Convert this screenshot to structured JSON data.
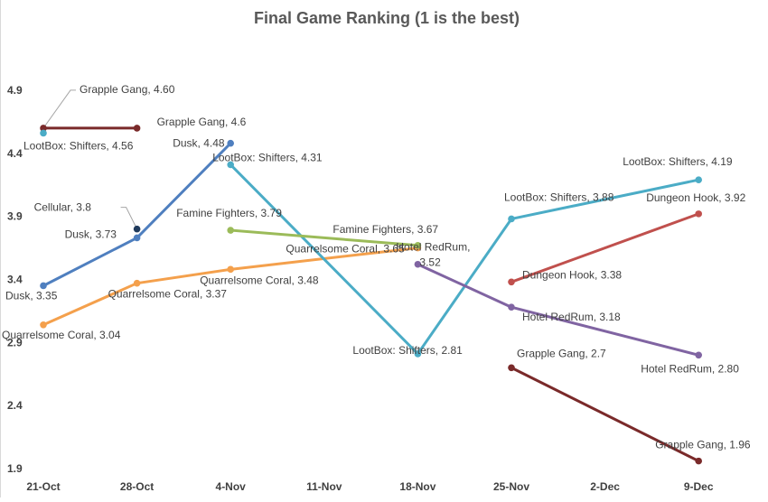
{
  "chart_data": {
    "type": "line",
    "title": "Final Game Ranking (1 is the best)",
    "xlabel": "",
    "ylabel": "",
    "x_dates": [
      "2017-10-21",
      "2017-10-28",
      "2017-11-04",
      "2017-11-11",
      "2017-11-18",
      "2017-11-25",
      "2017-12-02",
      "2017-12-09"
    ],
    "x_tick_labels": [
      "21-Oct",
      "28-Oct",
      "4-Nov",
      "11-Nov",
      "18-Nov",
      "25-Nov",
      "2-Dec",
      "9-Dec"
    ],
    "y_tick_labels": [
      "1.9",
      "2.4",
      "2.9",
      "3.4",
      "3.9",
      "4.4",
      "4.9"
    ],
    "ylim": [
      1.9,
      5.25
    ],
    "grid": false,
    "legend": "none",
    "series": [
      {
        "color": "#4f7fbf",
        "points": [
          {
            "x": "2017-10-21",
            "y": 3.35,
            "label": "Dusk, 3.35"
          },
          {
            "x": "2017-10-28",
            "y": 3.73,
            "label": "Dusk, 3.73"
          },
          {
            "x": "2017-11-04",
            "y": 4.48,
            "label": "Dusk, 4.48"
          }
        ]
      },
      {
        "color": "#f4a04c",
        "points": [
          {
            "x": "2017-10-21",
            "y": 3.04,
            "label": "Quarrelsome Coral, 3.04"
          },
          {
            "x": "2017-10-28",
            "y": 3.37,
            "label": "Quarrelsome Coral, 3.37"
          },
          {
            "x": "2017-11-04",
            "y": 3.48,
            "label": "Quarrelsome Coral, 3.48"
          },
          {
            "x": "2017-11-18",
            "y": 3.65,
            "label": "Quarrelsome Coral, 3.65"
          }
        ]
      },
      {
        "color": "#7a2a2a",
        "points": [
          {
            "x": "2017-10-21",
            "y": 4.6,
            "label": "Grapple Gang, 4.60"
          },
          {
            "x": "2017-10-28",
            "y": 4.6,
            "label": "Grapple Gang, 4.6"
          }
        ]
      },
      {
        "color": "#7a2a2a",
        "points": [
          {
            "x": "2017-11-25",
            "y": 2.7,
            "label": "Grapple Gang, 2.7"
          },
          {
            "x": "2017-12-09",
            "y": 1.96,
            "label": "Grapple Gang, 1.96"
          }
        ]
      },
      {
        "color": "#4bacc6",
        "points": [
          {
            "x": "2017-10-21",
            "y": 4.56,
            "label": "LootBox: Shifters, 4.56"
          }
        ]
      },
      {
        "color": "#4bacc6",
        "points": [
          {
            "x": "2017-11-04",
            "y": 4.31,
            "label": "LootBox: Shifters, 4.31"
          },
          {
            "x": "2017-11-18",
            "y": 2.81,
            "label": "LootBox: Shifters, 2.81"
          },
          {
            "x": "2017-11-25",
            "y": 3.88,
            "label": "LootBox: Shifters, 3.88"
          },
          {
            "x": "2017-12-09",
            "y": 4.19,
            "label": "LootBox: Shifters, 4.19"
          }
        ]
      },
      {
        "color": "#1f3a5c",
        "points": [
          {
            "x": "2017-10-28",
            "y": 3.8,
            "label": "Cellular, 3.8"
          }
        ]
      },
      {
        "color": "#9bbb59",
        "points": [
          {
            "x": "2017-11-04",
            "y": 3.79,
            "label": "Famine Fighters, 3.79"
          },
          {
            "x": "2017-11-18",
            "y": 3.67,
            "label": "Famine Fighters, 3.67"
          }
        ]
      },
      {
        "color": "#8064a2",
        "points": [
          {
            "x": "2017-11-18",
            "y": 3.52,
            "label": "Hotel RedRum, 3.52"
          },
          {
            "x": "2017-11-25",
            "y": 3.18,
            "label": "Hotel RedRum, 3.18"
          },
          {
            "x": "2017-12-09",
            "y": 2.8,
            "label": "Hotel RedRum, 2.80"
          }
        ]
      },
      {
        "color": "#c0504d",
        "points": [
          {
            "x": "2017-11-25",
            "y": 3.38,
            "label": "Dungeon Hook, 3.38"
          },
          {
            "x": "2017-12-09",
            "y": 3.92,
            "label": "Dungeon Hook, 3.92"
          }
        ]
      }
    ]
  }
}
